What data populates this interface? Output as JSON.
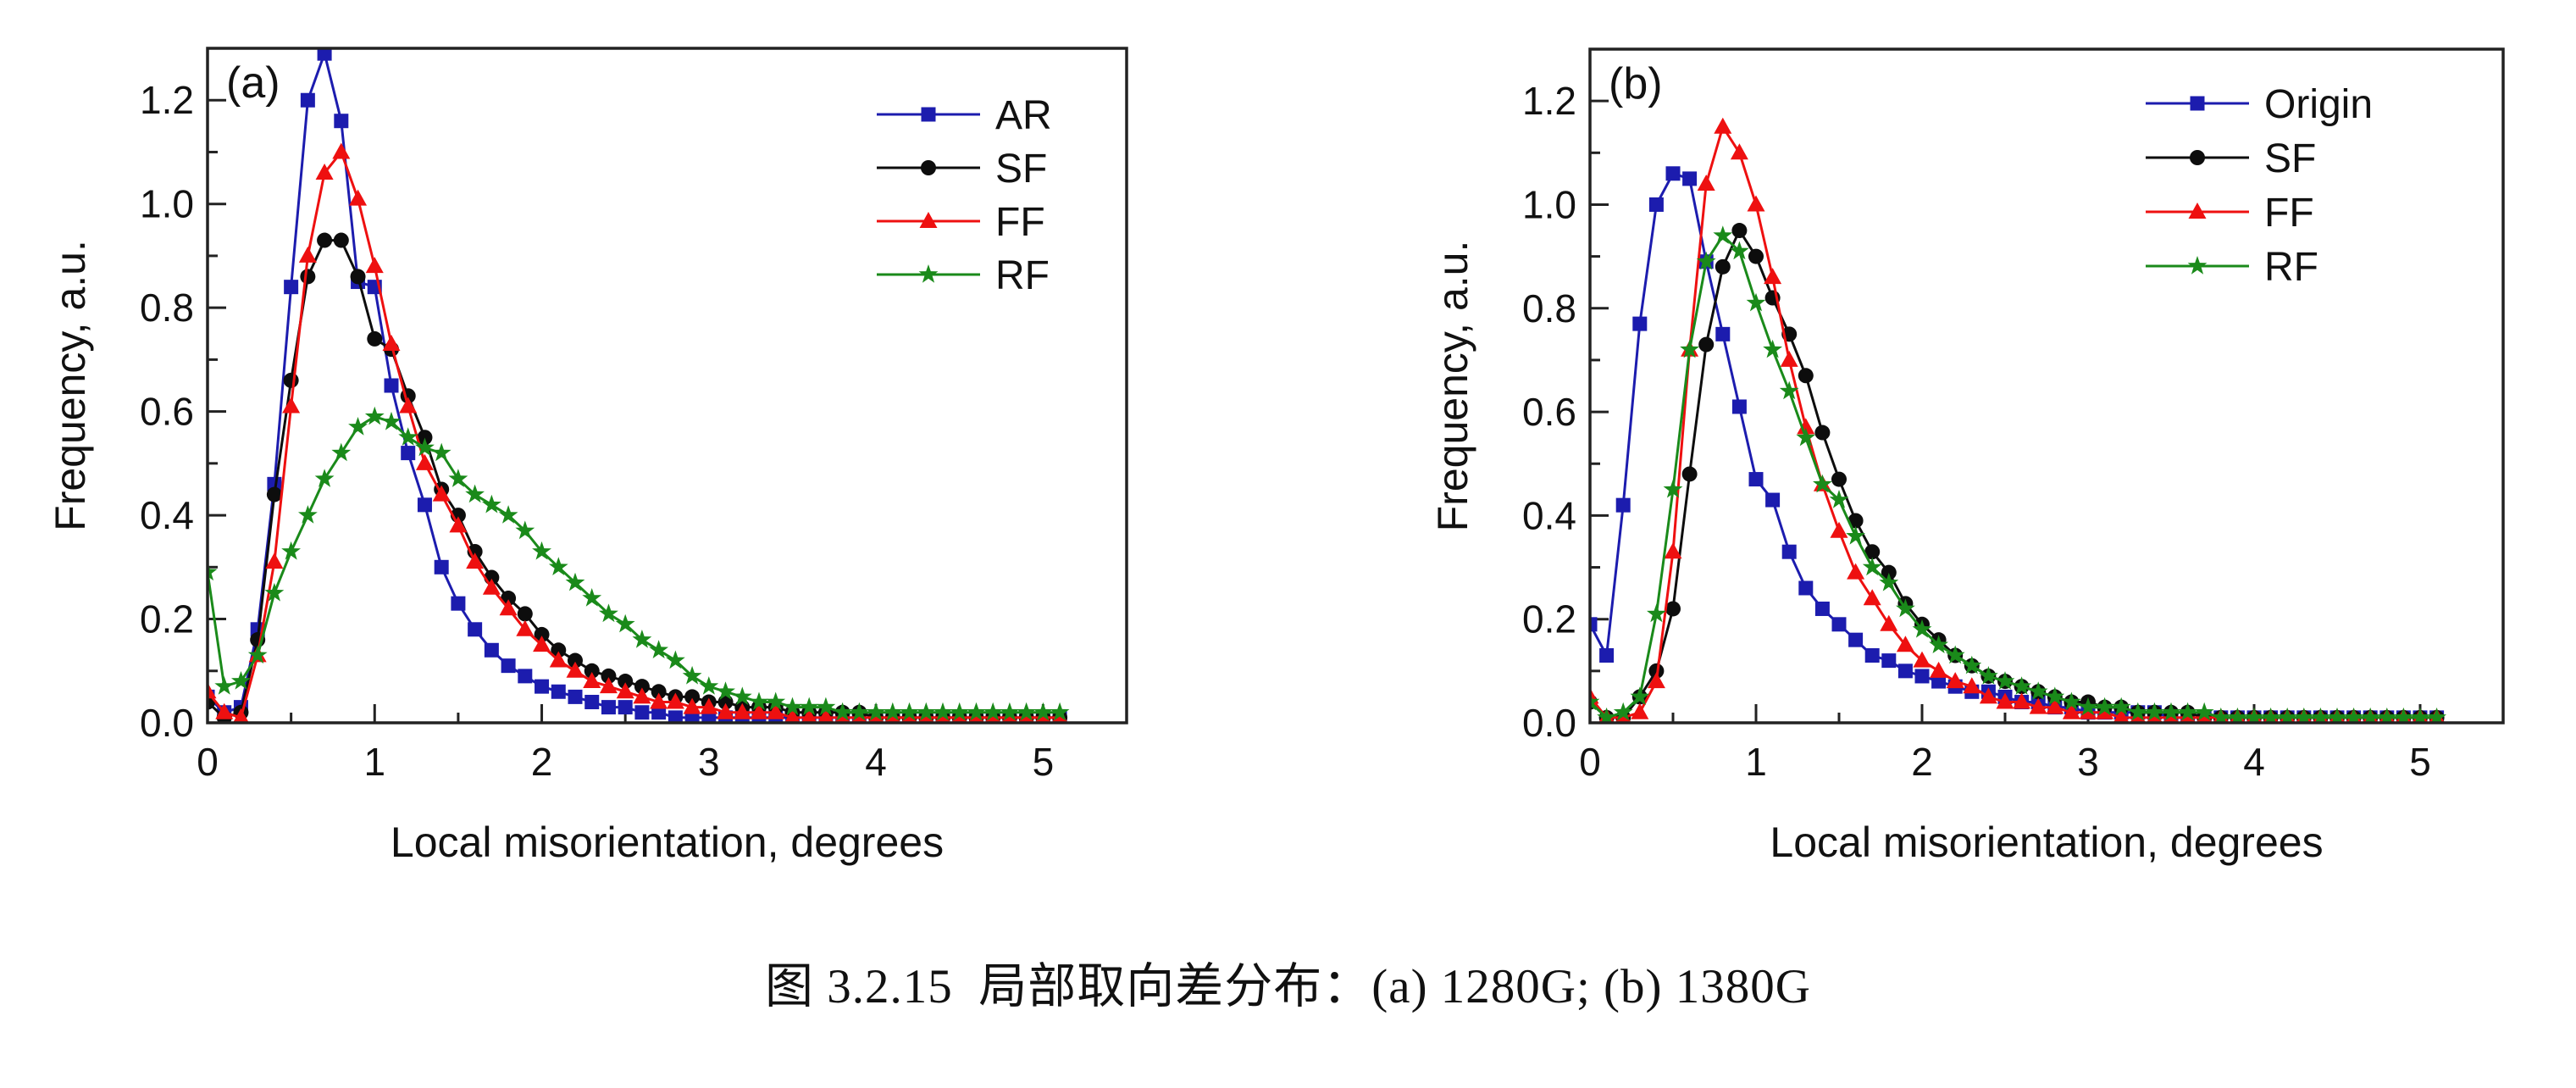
{
  "figure": {
    "caption": "图 3.2.15  局部取向差分布：(a) 1280G; (b) 1380G"
  },
  "colors": {
    "blue": "#1c1cae",
    "black": "#0d0d0d",
    "red": "#ee1010",
    "green": "#1a8a1a",
    "axis": "#222222",
    "text": "#111111"
  },
  "chart_data": [
    {
      "type": "line",
      "panel_label": "(a)",
      "xlabel": "Local misorientation, degrees",
      "ylabel": "Frequency, a.u.",
      "xlim": [
        0,
        5.5
      ],
      "ylim": [
        0,
        1.3
      ],
      "x_tick_labels": [
        "0",
        "1",
        "2",
        "3",
        "4",
        "5"
      ],
      "x_tick_values": [
        0,
        1,
        2,
        3,
        4,
        5
      ],
      "x_minor_step": 0.5,
      "y_tick_labels": [
        "0.0",
        "0.2",
        "0.4",
        "0.6",
        "0.8",
        "1.0",
        "1.2"
      ],
      "y_tick_values": [
        0,
        0.2,
        0.4,
        0.6,
        0.8,
        1.0,
        1.2
      ],
      "y_minor_step": 0.1,
      "grid": false,
      "legend_position": "top-right-inside",
      "x_start": 0,
      "x_step": 0.1,
      "series": [
        {
          "name": "AR",
          "color": "#1c1cae",
          "marker": "square",
          "values": [
            0.05,
            0.02,
            0.03,
            0.18,
            0.46,
            0.84,
            1.2,
            1.29,
            1.16,
            0.85,
            0.84,
            0.65,
            0.52,
            0.42,
            0.3,
            0.23,
            0.18,
            0.14,
            0.11,
            0.09,
            0.07,
            0.06,
            0.05,
            0.04,
            0.03,
            0.03,
            0.02,
            0.02,
            0.01,
            0.01,
            0.01,
            0.01,
            0.01,
            0.01,
            0.01,
            0.01,
            0.01,
            0.01,
            0.01,
            0.01,
            0.01,
            0.01,
            0.01,
            0.01,
            0.01,
            0.01,
            0.01,
            0.01,
            0.01,
            0.01,
            0.01,
            0.01
          ]
        },
        {
          "name": "SF",
          "color": "#0d0d0d",
          "marker": "circle",
          "values": [
            0.04,
            0.01,
            0.02,
            0.16,
            0.44,
            0.66,
            0.86,
            0.93,
            0.93,
            0.86,
            0.74,
            0.72,
            0.63,
            0.55,
            0.45,
            0.4,
            0.33,
            0.28,
            0.24,
            0.21,
            0.17,
            0.14,
            0.12,
            0.1,
            0.09,
            0.08,
            0.07,
            0.06,
            0.05,
            0.05,
            0.04,
            0.04,
            0.03,
            0.03,
            0.03,
            0.02,
            0.02,
            0.02,
            0.02,
            0.02,
            0.01,
            0.01,
            0.01,
            0.01,
            0.01,
            0.01,
            0.01,
            0.01,
            0.01,
            0.01,
            0.01,
            0.01
          ]
        },
        {
          "name": "FF",
          "color": "#ee1010",
          "marker": "triangle",
          "values": [
            0.06,
            0.02,
            0.01,
            0.13,
            0.31,
            0.61,
            0.9,
            1.06,
            1.1,
            1.01,
            0.88,
            0.73,
            0.61,
            0.5,
            0.44,
            0.38,
            0.31,
            0.26,
            0.22,
            0.18,
            0.15,
            0.12,
            0.1,
            0.08,
            0.07,
            0.06,
            0.05,
            0.04,
            0.04,
            0.03,
            0.03,
            0.02,
            0.02,
            0.02,
            0.02,
            0.01,
            0.01,
            0.01,
            0.01,
            0.01,
            0.01,
            0.01,
            0.01,
            0.01,
            0.01,
            0.01,
            0.01,
            0.01,
            0.01,
            0.01,
            0.01,
            0.01
          ]
        },
        {
          "name": "RF",
          "color": "#1a8a1a",
          "marker": "star",
          "values": [
            0.29,
            0.07,
            0.08,
            0.13,
            0.25,
            0.33,
            0.4,
            0.47,
            0.52,
            0.57,
            0.59,
            0.58,
            0.55,
            0.53,
            0.52,
            0.47,
            0.44,
            0.42,
            0.4,
            0.37,
            0.33,
            0.3,
            0.27,
            0.24,
            0.21,
            0.19,
            0.16,
            0.14,
            0.12,
            0.09,
            0.07,
            0.06,
            0.05,
            0.04,
            0.04,
            0.03,
            0.03,
            0.03,
            0.02,
            0.02,
            0.02,
            0.02,
            0.02,
            0.02,
            0.02,
            0.02,
            0.02,
            0.02,
            0.02,
            0.02,
            0.02,
            0.02
          ]
        }
      ]
    },
    {
      "type": "line",
      "panel_label": "(b)",
      "xlabel": "Local misorientation, degrees",
      "ylabel": "Frequency, a.u.",
      "xlim": [
        0,
        5.5
      ],
      "ylim": [
        0,
        1.3
      ],
      "x_tick_labels": [
        "0",
        "1",
        "2",
        "3",
        "4",
        "5"
      ],
      "x_tick_values": [
        0,
        1,
        2,
        3,
        4,
        5
      ],
      "x_minor_step": 0.5,
      "y_tick_labels": [
        "0.0",
        "0.2",
        "0.4",
        "0.6",
        "0.8",
        "1.0",
        "1.2"
      ],
      "y_tick_values": [
        0,
        0.2,
        0.4,
        0.6,
        0.8,
        1.0,
        1.2
      ],
      "y_minor_step": 0.1,
      "grid": false,
      "legend_position": "top-right-inside",
      "x_start": 0,
      "x_step": 0.1,
      "series": [
        {
          "name": "Origin",
          "color": "#1c1cae",
          "marker": "square",
          "values": [
            0.19,
            0.13,
            0.42,
            0.77,
            1.0,
            1.06,
            1.05,
            0.89,
            0.75,
            0.61,
            0.47,
            0.43,
            0.33,
            0.26,
            0.22,
            0.19,
            0.16,
            0.13,
            0.12,
            0.1,
            0.09,
            0.08,
            0.07,
            0.06,
            0.06,
            0.05,
            0.04,
            0.04,
            0.03,
            0.03,
            0.02,
            0.02,
            0.02,
            0.02,
            0.02,
            0.01,
            0.01,
            0.01,
            0.01,
            0.01,
            0.01,
            0.01,
            0.01,
            0.01,
            0.01,
            0.01,
            0.01,
            0.01,
            0.01,
            0.01,
            0.01,
            0.01
          ]
        },
        {
          "name": "SF",
          "color": "#0d0d0d",
          "marker": "circle",
          "values": [
            0.04,
            0.01,
            0.01,
            0.05,
            0.1,
            0.22,
            0.48,
            0.73,
            0.88,
            0.95,
            0.9,
            0.82,
            0.75,
            0.67,
            0.56,
            0.47,
            0.39,
            0.33,
            0.29,
            0.23,
            0.19,
            0.16,
            0.13,
            0.11,
            0.09,
            0.08,
            0.07,
            0.06,
            0.05,
            0.04,
            0.04,
            0.03,
            0.03,
            0.02,
            0.02,
            0.02,
            0.02,
            0.01,
            0.01,
            0.01,
            0.01,
            0.01,
            0.01,
            0.01,
            0.01,
            0.01,
            0.01,
            0.01,
            0.01,
            0.01,
            0.01,
            0.01
          ]
        },
        {
          "name": "FF",
          "color": "#ee1010",
          "marker": "triangle",
          "values": [
            0.05,
            0.01,
            0.01,
            0.02,
            0.08,
            0.33,
            0.72,
            1.04,
            1.15,
            1.1,
            1.0,
            0.86,
            0.7,
            0.57,
            0.46,
            0.37,
            0.29,
            0.24,
            0.19,
            0.15,
            0.12,
            0.1,
            0.08,
            0.07,
            0.05,
            0.04,
            0.04,
            0.03,
            0.03,
            0.02,
            0.02,
            0.02,
            0.01,
            0.01,
            0.01,
            0.01,
            0.01,
            0.01,
            0.01,
            0.01,
            0.01,
            0.01,
            0.01,
            0.01,
            0.01,
            0.01,
            0.01,
            0.01,
            0.01,
            0.01,
            0.01,
            0.01
          ]
        },
        {
          "name": "RF",
          "color": "#1a8a1a",
          "marker": "star",
          "values": [
            0.04,
            0.01,
            0.02,
            0.05,
            0.21,
            0.45,
            0.72,
            0.89,
            0.94,
            0.91,
            0.81,
            0.72,
            0.64,
            0.55,
            0.46,
            0.43,
            0.36,
            0.3,
            0.27,
            0.22,
            0.18,
            0.15,
            0.13,
            0.11,
            0.09,
            0.08,
            0.07,
            0.06,
            0.05,
            0.04,
            0.03,
            0.03,
            0.03,
            0.02,
            0.02,
            0.02,
            0.02,
            0.02,
            0.01,
            0.01,
            0.01,
            0.01,
            0.01,
            0.01,
            0.01,
            0.01,
            0.01,
            0.01,
            0.01,
            0.01,
            0.01,
            0.01
          ]
        }
      ]
    }
  ]
}
